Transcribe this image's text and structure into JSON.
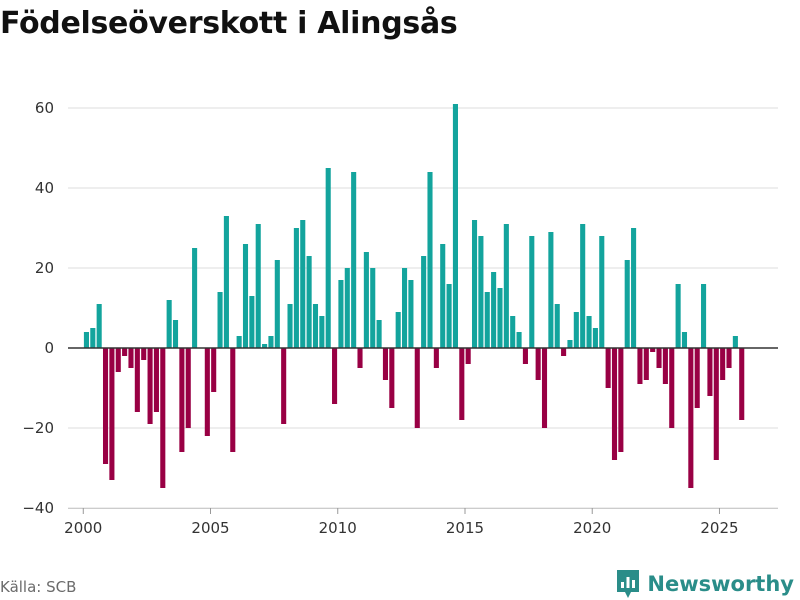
{
  "page": {
    "title": "Födelseöverskott i Alingsås"
  },
  "source": "Källa: SCB",
  "brand": {
    "name": "Newsworthy",
    "icon": "newsworthy-logo-icon"
  },
  "colors": {
    "positive": "#13a49d",
    "negative": "#990044",
    "grid": "#dddddd",
    "zero": "#333333",
    "brand": "#2a8d89"
  },
  "chart_data": {
    "type": "bar",
    "title": "Födelseöverskott i Alingsås",
    "xlabel": "",
    "ylabel": "",
    "ylim": [
      -40,
      62
    ],
    "xlim": [
      1999.4,
      2027.3
    ],
    "yticks": [
      -40,
      -20,
      0,
      20,
      40,
      60
    ],
    "ytick_labels": [
      "−40",
      "−20",
      "0",
      "20",
      "40",
      "60"
    ],
    "xticks": [
      2000,
      2005,
      2010,
      2015,
      2020,
      2025
    ],
    "xtick_labels": [
      "2000",
      "2005",
      "2010",
      "2015",
      "2020",
      "2025"
    ],
    "grid": true,
    "x_start": 2000.125,
    "period": "quarterly",
    "values": [
      4,
      5,
      11,
      -29,
      -33,
      -6,
      -2,
      -5,
      -16,
      -3,
      -19,
      -16,
      -35,
      12,
      7,
      -26,
      -20,
      25,
      0,
      -22,
      -11,
      14,
      33,
      -26,
      3,
      26,
      13,
      31,
      1,
      3,
      22,
      -19,
      11,
      30,
      32,
      23,
      11,
      8,
      45,
      -14,
      17,
      20,
      44,
      -5,
      24,
      20,
      7,
      -8,
      -15,
      9,
      20,
      17,
      -20,
      23,
      44,
      -5,
      26,
      16,
      61,
      -18,
      -4,
      32,
      28,
      14,
      19,
      15,
      31,
      8,
      4,
      -4,
      28,
      -8,
      -20,
      29,
      11,
      -2,
      2,
      9,
      31,
      8,
      5,
      28,
      -10,
      -28,
      -26,
      22,
      30,
      -9,
      -8,
      -1,
      -5,
      -9,
      -20,
      16,
      4,
      -35,
      -15,
      16,
      -12,
      -28,
      -8,
      -5,
      3,
      -18
    ]
  }
}
